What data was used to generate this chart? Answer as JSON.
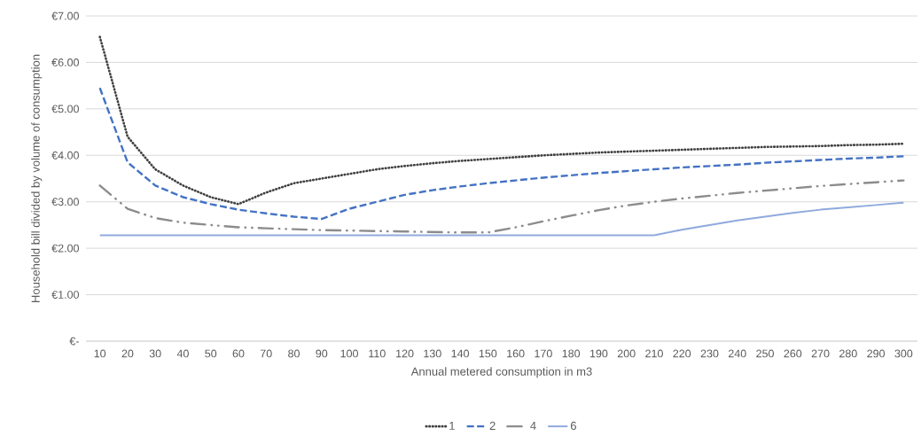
{
  "chart_data": {
    "type": "line",
    "xlabel": "Annual metered consumption in m3",
    "ylabel": "Household bill divided by volume of consumption",
    "categories": [
      "10",
      "20",
      "30",
      "40",
      "50",
      "60",
      "70",
      "80",
      "90",
      "100",
      "110",
      "120",
      "130",
      "140",
      "150",
      "160",
      "170",
      "180",
      "190",
      "200",
      "210",
      "220",
      "230",
      "240",
      "250",
      "260",
      "270",
      "280",
      "290",
      "300"
    ],
    "series": [
      {
        "name": "1",
        "color": "#404040",
        "line_style": "dotted",
        "values": [
          6.55,
          4.4,
          3.7,
          3.35,
          3.1,
          2.95,
          3.2,
          3.4,
          3.5,
          3.6,
          3.7,
          3.77,
          3.83,
          3.88,
          3.92,
          3.96,
          4.0,
          4.03,
          4.06,
          4.08,
          4.1,
          4.12,
          4.14,
          4.16,
          4.18,
          4.19,
          4.2,
          4.22,
          4.23,
          4.25
        ]
      },
      {
        "name": "2",
        "color": "#4472c4",
        "line_style": "dashed",
        "values": [
          5.45,
          3.85,
          3.35,
          3.1,
          2.95,
          2.83,
          2.75,
          2.68,
          2.63,
          2.85,
          3.0,
          3.15,
          3.25,
          3.33,
          3.4,
          3.46,
          3.52,
          3.57,
          3.62,
          3.66,
          3.7,
          3.74,
          3.77,
          3.8,
          3.84,
          3.87,
          3.9,
          3.93,
          3.95,
          3.98
        ]
      },
      {
        "name": "4",
        "color": "#8c8c8c",
        "line_style": "dashdot",
        "values": [
          3.35,
          2.85,
          2.65,
          2.55,
          2.5,
          2.45,
          2.43,
          2.41,
          2.39,
          2.38,
          2.37,
          2.36,
          2.35,
          2.34,
          2.34,
          2.45,
          2.58,
          2.7,
          2.82,
          2.92,
          3.0,
          3.07,
          3.13,
          3.19,
          3.24,
          3.29,
          3.34,
          3.38,
          3.42,
          3.46
        ]
      },
      {
        "name": "6",
        "color": "#8faadc",
        "line_style": "solid",
        "values": [
          2.28,
          2.28,
          2.28,
          2.28,
          2.28,
          2.28,
          2.28,
          2.28,
          2.28,
          2.28,
          2.28,
          2.28,
          2.28,
          2.28,
          2.28,
          2.28,
          2.28,
          2.28,
          2.28,
          2.28,
          2.28,
          2.4,
          2.5,
          2.6,
          2.68,
          2.76,
          2.83,
          2.88,
          2.93,
          2.98
        ]
      }
    ],
    "ylim": [
      0,
      7
    ],
    "yticks": [
      {
        "value": 0,
        "label": "€-"
      },
      {
        "value": 1,
        "label": "€1.00"
      },
      {
        "value": 2,
        "label": "€2.00"
      },
      {
        "value": 3,
        "label": "€3.00"
      },
      {
        "value": 4,
        "label": "€4.00"
      },
      {
        "value": 5,
        "label": "€5.00"
      },
      {
        "value": 6,
        "label": "€6.00"
      },
      {
        "value": 7,
        "label": "€7.00"
      }
    ],
    "grid": "y",
    "legend": "bottom"
  }
}
